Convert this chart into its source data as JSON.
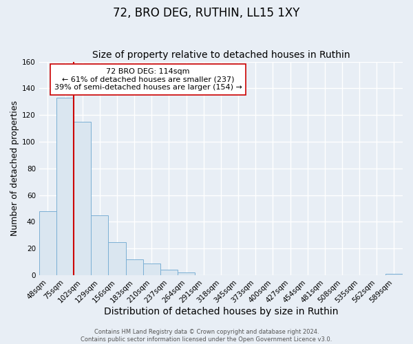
{
  "title": "72, BRO DEG, RUTHIN, LL15 1XY",
  "subtitle": "Size of property relative to detached houses in Ruthin",
  "xlabel": "Distribution of detached houses by size in Ruthin",
  "ylabel": "Number of detached properties",
  "bar_labels": [
    "48sqm",
    "75sqm",
    "102sqm",
    "129sqm",
    "156sqm",
    "183sqm",
    "210sqm",
    "237sqm",
    "264sqm",
    "291sqm",
    "318sqm",
    "345sqm",
    "373sqm",
    "400sqm",
    "427sqm",
    "454sqm",
    "481sqm",
    "508sqm",
    "535sqm",
    "562sqm",
    "589sqm"
  ],
  "bar_values": [
    48,
    133,
    115,
    45,
    25,
    12,
    9,
    4,
    2,
    0,
    0,
    0,
    0,
    0,
    0,
    0,
    0,
    0,
    0,
    0,
    1
  ],
  "bar_color": "#dae6f0",
  "bar_edge_color": "#7aafd4",
  "ylim": [
    0,
    160
  ],
  "yticks": [
    0,
    20,
    40,
    60,
    80,
    100,
    120,
    140,
    160
  ],
  "vline_color": "#cc0000",
  "annotation_text": "72 BRO DEG: 114sqm\n← 61% of detached houses are smaller (237)\n39% of semi-detached houses are larger (154) →",
  "annotation_box_color": "#ffffff",
  "annotation_box_edge_color": "#cc0000",
  "footer_line1": "Contains HM Land Registry data © Crown copyright and database right 2024.",
  "footer_line2": "Contains public sector information licensed under the Open Government Licence v3.0.",
  "bg_color": "#e8eef5",
  "grid_color": "#ffffff",
  "title_fontsize": 12,
  "subtitle_fontsize": 10,
  "xlabel_fontsize": 10,
  "ylabel_fontsize": 9,
  "tick_fontsize": 7.5,
  "footer_fontsize": 6,
  "annot_fontsize": 8
}
